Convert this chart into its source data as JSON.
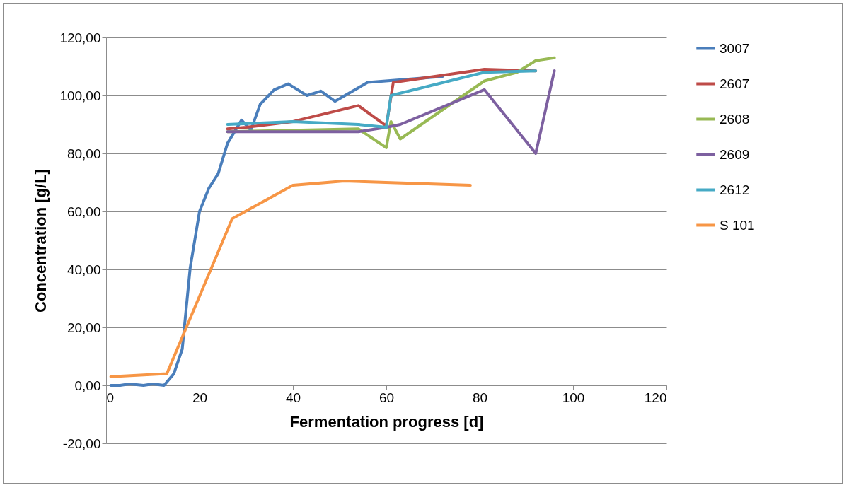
{
  "chart_data": {
    "type": "line",
    "xlabel": "Fermentation progress [d]",
    "ylabel": "Concentration [g/L]",
    "xlim": [
      0,
      120
    ],
    "xticks": [
      0,
      20,
      40,
      60,
      80,
      100,
      120
    ],
    "ylim": [
      -20,
      120
    ],
    "yticks": [
      {
        "value": -20,
        "label": "-20,00"
      },
      {
        "value": 0,
        "label": "0,00"
      },
      {
        "value": 20,
        "label": "20,00"
      },
      {
        "value": 40,
        "label": "40,00"
      },
      {
        "value": 60,
        "label": "60,00"
      },
      {
        "value": 80,
        "label": "80,00"
      },
      {
        "value": 100,
        "label": "100,00"
      },
      {
        "value": 120,
        "label": "120,00"
      }
    ],
    "grid": "y",
    "legend": "right",
    "marker": "none",
    "line_style": "solid",
    "series": [
      {
        "name": "3007",
        "color": "#4a7ebb",
        "x": [
          1,
          3,
          5,
          8,
          10,
          12.4,
          14.5,
          16.3,
          18,
          20,
          22,
          24,
          26,
          29,
          31,
          33,
          36,
          39,
          43,
          46,
          49,
          56,
          72
        ],
        "values": [
          0,
          0,
          0.5,
          0,
          0.5,
          0,
          4,
          12.5,
          40.5,
          60,
          68,
          73,
          83.5,
          91.5,
          88,
          97,
          102,
          104,
          100,
          101.5,
          98,
          104.5,
          106.5
        ]
      },
      {
        "name": "2607",
        "color": "#be4b48",
        "x": [
          26,
          30,
          40,
          54,
          60,
          61.5,
          81,
          92
        ],
        "values": [
          88.5,
          89,
          91,
          96.5,
          89.5,
          104.5,
          109,
          108.5
        ]
      },
      {
        "name": "2608",
        "color": "#98b954",
        "x": [
          26,
          40,
          54,
          60,
          61,
          63,
          81,
          88,
          92,
          96
        ],
        "values": [
          87.5,
          88,
          88.5,
          82,
          91,
          85,
          105,
          108,
          112,
          113
        ]
      },
      {
        "name": "2609",
        "color": "#7d60a0",
        "x": [
          26,
          40,
          54,
          60,
          63,
          81,
          92,
          96
        ],
        "values": [
          87.5,
          87.5,
          87.5,
          89,
          90,
          102,
          80,
          108.5
        ]
      },
      {
        "name": "2612",
        "color": "#46aac5",
        "x": [
          26,
          40,
          54,
          60,
          61,
          81,
          92
        ],
        "values": [
          90,
          91,
          90,
          89,
          100,
          108,
          108.5
        ]
      },
      {
        "name": "S 101",
        "color": "#f79646",
        "x": [
          1,
          13,
          27,
          40,
          51,
          78
        ],
        "values": [
          3,
          4,
          57.5,
          69,
          70.5,
          69
        ]
      }
    ]
  }
}
